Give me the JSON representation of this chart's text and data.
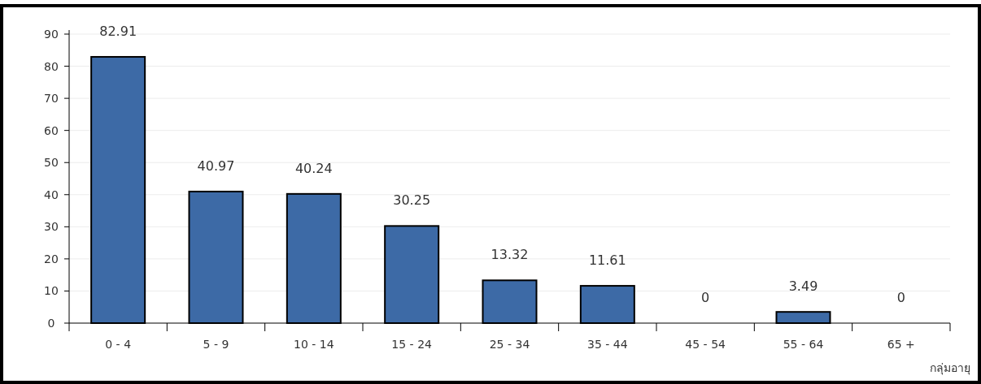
{
  "chart_data": {
    "type": "bar",
    "xlabel": "กลุ่มอายุ",
    "categories": [
      "0 - 4",
      "5 - 9",
      "10 - 14",
      "15 - 24",
      "25 - 34",
      "35 - 44",
      "45 - 54",
      "55 - 64",
      "65 +"
    ],
    "values": [
      82.91,
      40.97,
      40.24,
      30.25,
      13.32,
      11.61,
      0,
      3.49,
      0
    ],
    "color": "#3d6aa6",
    "ylim": [
      0,
      90
    ],
    "yticks": [
      0,
      10,
      20,
      30,
      40,
      50,
      60,
      70,
      80,
      90
    ],
    "grid": "y",
    "data_labels": true
  }
}
